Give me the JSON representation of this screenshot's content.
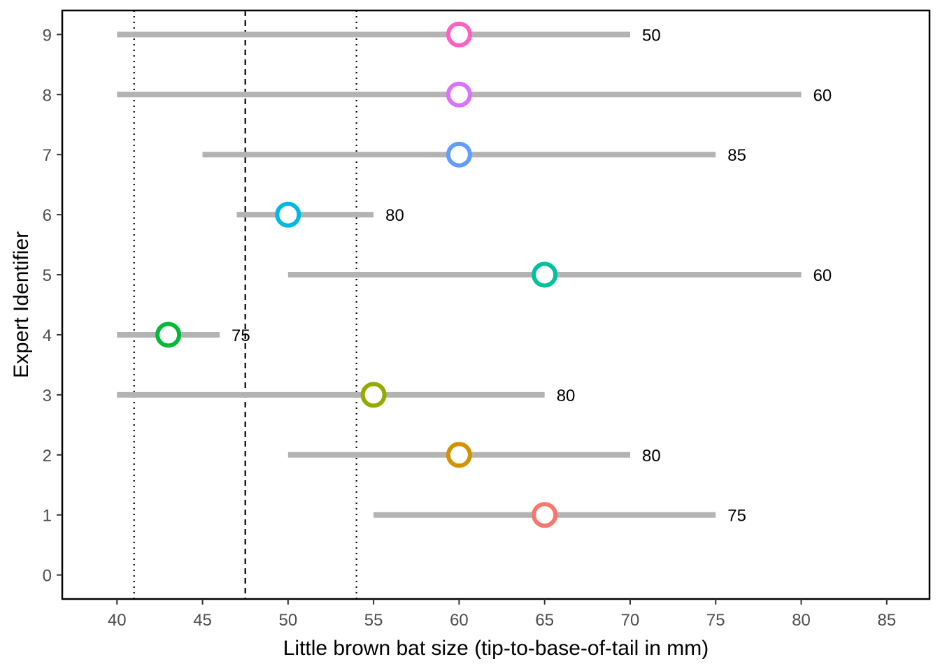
{
  "chart_data": {
    "type": "scatter",
    "xlabel": "Little brown bat size (tip-to-base-of-tail in mm)",
    "ylabel": "Expert Identifier",
    "xlim": [
      36.8,
      87.5
    ],
    "ylim": [
      -0.4,
      9.4
    ],
    "x_ticks": [
      40,
      45,
      50,
      55,
      60,
      65,
      70,
      75,
      80,
      85
    ],
    "y_ticks": [
      0,
      1,
      2,
      3,
      4,
      5,
      6,
      7,
      8,
      9
    ],
    "grid": false,
    "reference_lines": [
      {
        "x": 41,
        "style": "dotted"
      },
      {
        "x": 47.5,
        "style": "dashed"
      },
      {
        "x": 54,
        "style": "dotted"
      }
    ],
    "range_color": "#b3b3b3",
    "points": [
      {
        "expert": 1,
        "low": 55,
        "best": 65,
        "high": 75,
        "confidence": "75",
        "color": "#F8766D"
      },
      {
        "expert": 2,
        "low": 50,
        "best": 60,
        "high": 70,
        "confidence": "80",
        "color": "#D39200"
      },
      {
        "expert": 3,
        "low": 40,
        "best": 55,
        "high": 65,
        "confidence": "80",
        "color": "#93AA00"
      },
      {
        "expert": 4,
        "low": 40,
        "best": 43,
        "high": 46,
        "confidence": "75",
        "color": "#00BA38"
      },
      {
        "expert": 5,
        "low": 50,
        "best": 65,
        "high": 80,
        "confidence": "60",
        "color": "#00C19F"
      },
      {
        "expert": 6,
        "low": 47,
        "best": 50,
        "high": 55,
        "confidence": "80",
        "color": "#00B9E3"
      },
      {
        "expert": 7,
        "low": 45,
        "best": 60,
        "high": 75,
        "confidence": "85",
        "color": "#619CFF"
      },
      {
        "expert": 8,
        "low": 40,
        "best": 60,
        "high": 80,
        "confidence": "60",
        "color": "#DB72FB"
      },
      {
        "expert": 9,
        "low": 40,
        "best": 60,
        "high": 70,
        "confidence": "50",
        "color": "#FF61C3"
      }
    ]
  }
}
